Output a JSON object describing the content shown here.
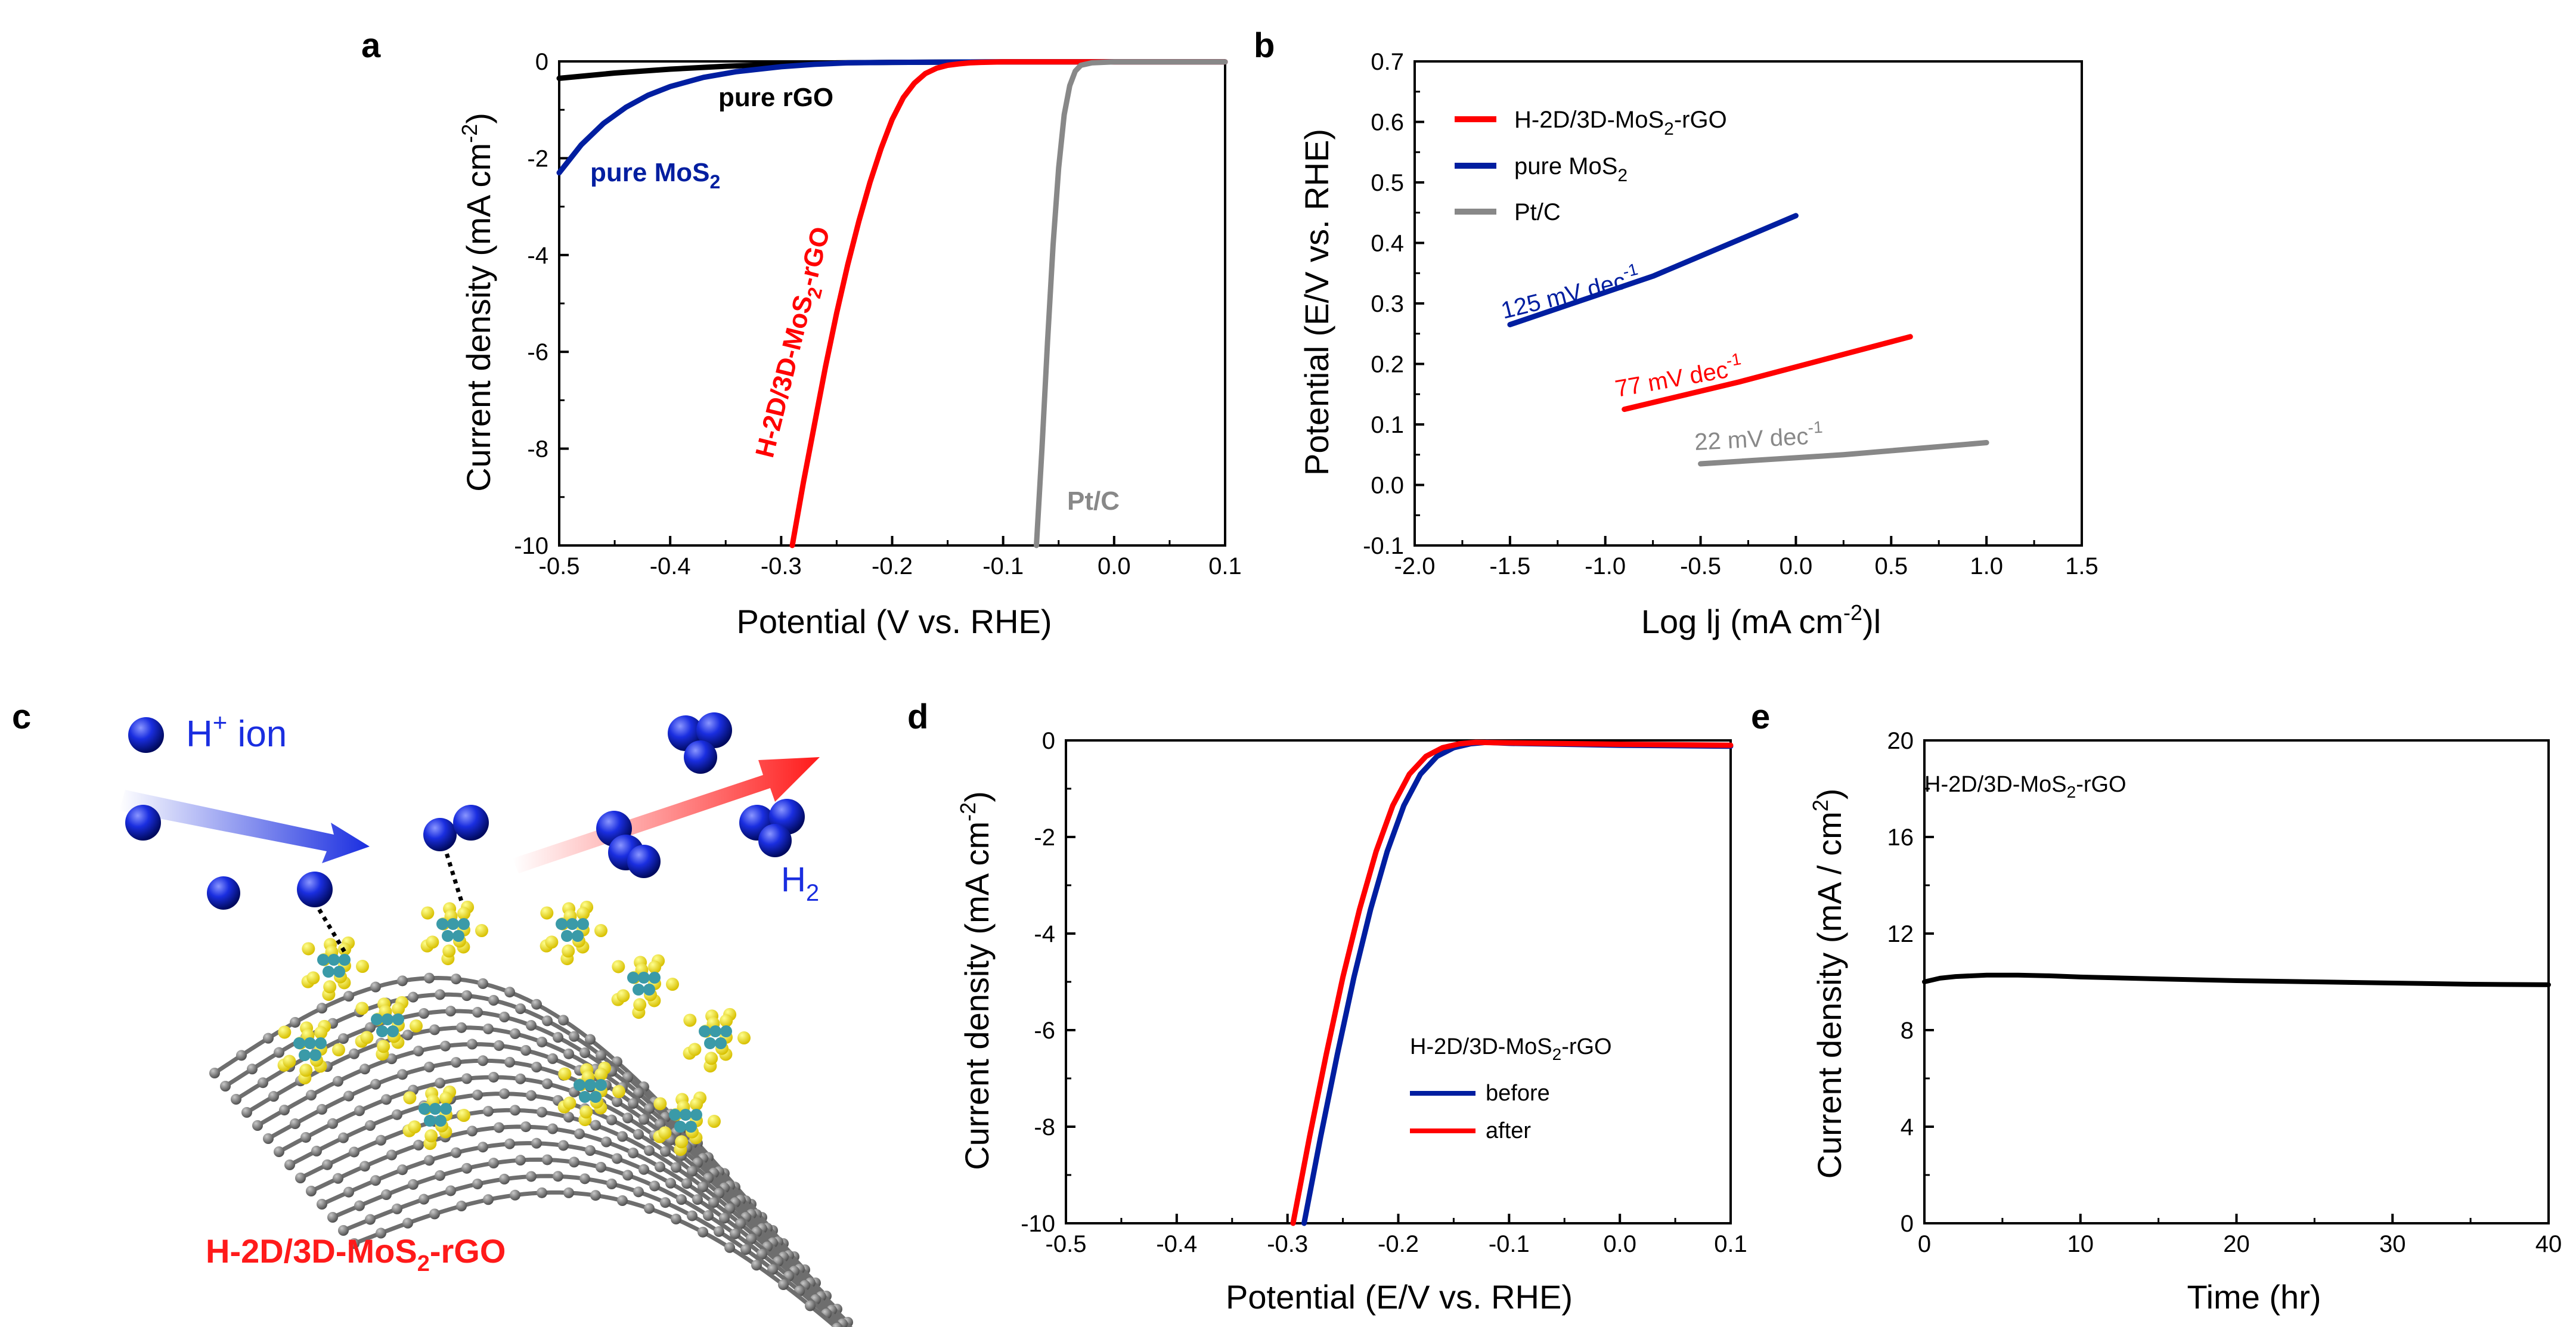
{
  "colors": {
    "red": "#ff0000",
    "blue": "#001ea0",
    "gray": "#888888",
    "black": "#000000",
    "h2blue": "#1a2ee0",
    "yellow": "#f3e000",
    "teal": "#3a9aa8",
    "graphene": "#7a7a7a"
  },
  "panels": {
    "a": "a",
    "b": "b",
    "c": "c",
    "d": "d",
    "e": "e"
  },
  "chart_data": [
    {
      "panel": "a",
      "type": "line",
      "xlabel": "Potential (V vs. RHE)",
      "ylabel": "Current density (mA cm",
      "ylabel_sup": "-2",
      "ylabel_end": ")",
      "xlim": [
        -0.5,
        0.1
      ],
      "ylim": [
        -10,
        0
      ],
      "xticks": [
        "-0.5",
        "-0.4",
        "-0.3",
        "-0.2",
        "-0.1",
        "0.0",
        "0.1"
      ],
      "yticks": [
        "0",
        "-2",
        "-4",
        "-6",
        "-8",
        "-10"
      ],
      "series": [
        {
          "name": "pure rGO",
          "color": "black",
          "x": [
            -0.5,
            -0.45,
            -0.4,
            -0.35,
            -0.3,
            -0.25,
            -0.2,
            -0.1,
            0.0,
            0.1
          ],
          "y": [
            -0.35,
            -0.24,
            -0.16,
            -0.1,
            -0.06,
            -0.03,
            -0.02,
            -0.01,
            -0.01,
            -0.01
          ]
        },
        {
          "name": "pure MoS2",
          "color": "blue",
          "x": [
            -0.5,
            -0.48,
            -0.46,
            -0.44,
            -0.42,
            -0.4,
            -0.37,
            -0.34,
            -0.3,
            -0.27,
            -0.24,
            -0.2,
            -0.1,
            0.0,
            0.1
          ],
          "y": [
            -2.3,
            -1.72,
            -1.28,
            -0.95,
            -0.7,
            -0.52,
            -0.33,
            -0.21,
            -0.11,
            -0.06,
            -0.03,
            -0.02,
            -0.01,
            -0.01,
            -0.01
          ]
        },
        {
          "name": "H-2D/3D-MoS2-rGO",
          "color": "red",
          "x": [
            -0.29,
            -0.28,
            -0.27,
            -0.26,
            -0.25,
            -0.24,
            -0.23,
            -0.22,
            -0.21,
            -0.2,
            -0.19,
            -0.18,
            -0.17,
            -0.16,
            -0.15,
            -0.14,
            -0.13,
            -0.12,
            -0.1,
            0.0,
            0.1
          ],
          "y": [
            -10,
            -8.7,
            -7.5,
            -6.3,
            -5.2,
            -4.2,
            -3.3,
            -2.5,
            -1.8,
            -1.2,
            -0.75,
            -0.45,
            -0.25,
            -0.14,
            -0.08,
            -0.05,
            -0.03,
            -0.02,
            -0.01,
            -0.01,
            -0.01
          ]
        },
        {
          "name": "Pt/C",
          "color": "gray",
          "x": [
            -0.07,
            -0.065,
            -0.06,
            -0.055,
            -0.05,
            -0.045,
            -0.04,
            -0.035,
            -0.03,
            -0.02,
            0.0,
            0.1
          ],
          "y": [
            -10,
            -8.0,
            -5.8,
            -3.8,
            -2.2,
            -1.1,
            -0.5,
            -0.2,
            -0.08,
            -0.03,
            -0.01,
            -0.01
          ]
        }
      ],
      "labels": {
        "rgo": "pure rGO",
        "mos2": "pure MoS",
        "mos2_sub": "2",
        "hyb_pre": "H-2D/3D-MoS",
        "hyb_sub": "2",
        "hyb_post": "-rGO",
        "ptc": "Pt/C"
      }
    },
    {
      "panel": "b",
      "type": "line",
      "xlabel_pre": "Log lj (mA cm",
      "xlabel_sup": "-2",
      "xlabel_post": ")l",
      "ylabel": "Potential (E/V vs. RHE)",
      "xlim": [
        -2.0,
        1.5
      ],
      "ylim": [
        -0.1,
        0.7
      ],
      "xticks": [
        "-2.0",
        "-1.5",
        "-1.0",
        "-0.5",
        "0.0",
        "0.5",
        "1.0",
        "1.5"
      ],
      "yticks": [
        "-0.1",
        "0.0",
        "0.1",
        "0.2",
        "0.3",
        "0.4",
        "0.5",
        "0.6",
        "0.7"
      ],
      "series": [
        {
          "name": "H-2D/3D-MoS2-rGO",
          "color": "red",
          "x": [
            -0.9,
            -0.3,
            0.6
          ],
          "y": [
            0.125,
            0.17,
            0.245
          ]
        },
        {
          "name": "pure MoS2",
          "color": "blue",
          "x": [
            -1.5,
            -0.75,
            0.0
          ],
          "y": [
            0.265,
            0.345,
            0.445
          ]
        },
        {
          "name": "Pt/C",
          "color": "gray",
          "x": [
            -0.5,
            0.25,
            1.0
          ],
          "y": [
            0.035,
            0.05,
            0.07
          ]
        }
      ],
      "legend": [
        {
          "pre": "H-2D/3D-MoS",
          "sub": "2",
          "post": "-rGO",
          "color": "red"
        },
        {
          "pre": "pure MoS",
          "sub": "2",
          "post": "",
          "color": "blue"
        },
        {
          "pre": "Pt/C",
          "sub": "",
          "post": "",
          "color": "gray"
        }
      ],
      "tafel": [
        {
          "text": "125 mV dec",
          "sup": "-1",
          "color": "blue"
        },
        {
          "text": "77 mV dec",
          "sup": "-1",
          "color": "red"
        },
        {
          "text": "22 mV dec",
          "sup": "-1",
          "color": "gray"
        }
      ]
    },
    {
      "panel": "d",
      "type": "line",
      "xlabel": "Potential (E/V vs. RHE)",
      "ylabel": "Current density (mA cm",
      "ylabel_sup": "-2",
      "ylabel_end": ")",
      "xlim": [
        -0.5,
        0.1
      ],
      "ylim": [
        -10,
        0
      ],
      "xticks": [
        "-0.5",
        "-0.4",
        "-0.3",
        "-0.2",
        "-0.1",
        "0.0",
        "0.1"
      ],
      "yticks": [
        "0",
        "-2",
        "-4",
        "-6",
        "-8",
        "-10"
      ],
      "series": [
        {
          "name": "before",
          "color": "blue",
          "x": [
            -0.285,
            -0.27,
            -0.255,
            -0.24,
            -0.225,
            -0.21,
            -0.195,
            -0.18,
            -0.165,
            -0.15,
            -0.135,
            -0.12,
            -0.1,
            0.0,
            0.1
          ],
          "y": [
            -10,
            -8.2,
            -6.5,
            -4.9,
            -3.5,
            -2.3,
            -1.35,
            -0.7,
            -0.33,
            -0.15,
            -0.07,
            -0.04,
            -0.06,
            -0.1,
            -0.12
          ]
        },
        {
          "name": "after",
          "color": "red",
          "x": [
            -0.295,
            -0.28,
            -0.265,
            -0.25,
            -0.235,
            -0.22,
            -0.205,
            -0.19,
            -0.175,
            -0.16,
            -0.145,
            -0.13,
            -0.1,
            0.0,
            0.1
          ],
          "y": [
            -10,
            -8.2,
            -6.5,
            -4.9,
            -3.5,
            -2.3,
            -1.35,
            -0.7,
            -0.33,
            -0.15,
            -0.07,
            -0.04,
            -0.05,
            -0.08,
            -0.1
          ]
        }
      ],
      "legend_title_pre": "H-2D/3D-MoS",
      "legend_title_sub": "2",
      "legend_title_post": "-rGO",
      "legend": [
        {
          "name": "before",
          "color": "blue"
        },
        {
          "name": "after",
          "color": "red"
        }
      ]
    },
    {
      "panel": "e",
      "type": "line",
      "xlabel": "Time (hr)",
      "ylabel": "Current density (mA / cm",
      "ylabel_sup": "2",
      "ylabel_end": ")",
      "xlim": [
        0,
        40
      ],
      "ylim": [
        0,
        20
      ],
      "xticks": [
        "0",
        "10",
        "20",
        "30",
        "40"
      ],
      "yticks": [
        "0",
        "4",
        "8",
        "12",
        "16",
        "20"
      ],
      "series": [
        {
          "name": "H-2D/3D-MoS2-rGO",
          "color": "black",
          "x": [
            0,
            1,
            2,
            4,
            6,
            8,
            10,
            15,
            20,
            25,
            30,
            35,
            40
          ],
          "y": [
            10.0,
            10.15,
            10.22,
            10.28,
            10.28,
            10.25,
            10.2,
            10.12,
            10.05,
            10.0,
            9.95,
            9.9,
            9.88
          ]
        }
      ],
      "inset_pre": "H-2D/3D-MoS",
      "inset_sub": "2",
      "inset_post": "-rGO"
    }
  ],
  "schematic": {
    "hion_label": "H",
    "hion_sup": "+",
    "hion_rest": " ion",
    "h2_label": "H",
    "h2_sub": "2",
    "title_pre": "H-2D/3D-MoS",
    "title_sub": "2",
    "title_post": "-rGO"
  }
}
